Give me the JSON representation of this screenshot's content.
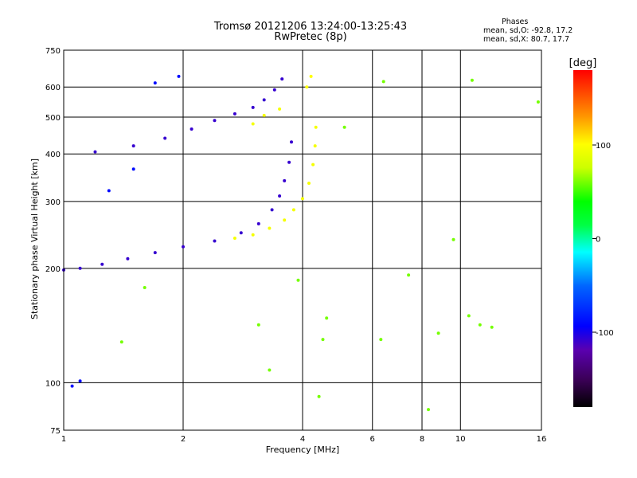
{
  "header": {
    "title_line1": "Tromsø 20121206 13:24:00-13:25:43",
    "title_line2": "RwPretec (8p)"
  },
  "phase_info": {
    "heading": "Phases",
    "line_o": "mean, sd,O: -92.8, 17.2",
    "line_x": "mean, sd,X: 80.7, 17.7"
  },
  "colorbar": {
    "unit": "[deg]",
    "min": -180,
    "max": 180,
    "ticks": [
      {
        "value": 100,
        "label": "100"
      },
      {
        "value": 0,
        "label": "0"
      },
      {
        "value": -100,
        "label": "-100"
      }
    ]
  },
  "chart_data": {
    "type": "scatter",
    "title": "Tromsø 20121206 13:24:00-13:25:43",
    "subtitle": "RwPretec (8p)",
    "xlabel": "Frequency [MHz]",
    "ylabel": "Stationary phase Virtual Height [km]",
    "x_scale": "log",
    "y_scale": "log",
    "xlim": [
      1,
      16
    ],
    "ylim": [
      75,
      750
    ],
    "x_ticks": [
      1,
      2,
      4,
      6,
      8,
      10,
      16
    ],
    "y_ticks": [
      75,
      100,
      200,
      300,
      400,
      500,
      600,
      750
    ],
    "color_variable": "phase [deg]",
    "grid": true,
    "series": [
      {
        "x": [
          1.0,
          1.1,
          1.25,
          1.45,
          1.7,
          2.0,
          2.4,
          2.8,
          3.1,
          3.35,
          3.5,
          3.6,
          3.7,
          3.75
        ],
        "y": [
          198,
          200,
          205,
          212,
          220,
          228,
          236,
          248,
          262,
          285,
          310,
          340,
          380,
          430
        ],
        "phase": -110
      },
      {
        "x": [
          1.2,
          1.5,
          1.8,
          2.1,
          2.4,
          2.7,
          3.0,
          3.2,
          3.4,
          3.55
        ],
        "y": [
          405,
          420,
          440,
          465,
          490,
          510,
          530,
          555,
          590,
          630
        ],
        "phase": -110
      },
      {
        "x": [
          2.7,
          3.0,
          3.3,
          3.6,
          3.8,
          4.0,
          4.15,
          4.25,
          4.3,
          4.32
        ],
        "y": [
          240,
          245,
          255,
          268,
          285,
          305,
          335,
          375,
          420,
          470
        ],
        "phase": 95
      },
      {
        "x": [
          3.0,
          3.2,
          3.5
        ],
        "y": [
          480,
          505,
          525
        ],
        "phase": 95
      },
      {
        "x": [
          4.1,
          4.2
        ],
        "y": [
          600,
          640
        ],
        "phase": 100
      },
      {
        "x": [
          1.05,
          1.1,
          1.3,
          1.5,
          1.7,
          1.95
        ],
        "y": [
          98,
          101,
          320,
          365,
          615,
          640
        ],
        "phase": -90
      },
      {
        "x": [
          1.4,
          1.6,
          3.1,
          3.3,
          3.9,
          4.4,
          4.5,
          4.6,
          5.1,
          6.3,
          6.4,
          7.4,
          8.3,
          8.8,
          9.6,
          10.5,
          10.7,
          11.2,
          12.0,
          15.7
        ],
        "y": [
          128,
          178,
          142,
          108,
          186,
          92,
          130,
          148,
          470,
          130,
          620,
          192,
          85,
          135,
          238,
          150,
          625,
          142,
          140,
          548
        ],
        "phase": 60
      }
    ]
  }
}
